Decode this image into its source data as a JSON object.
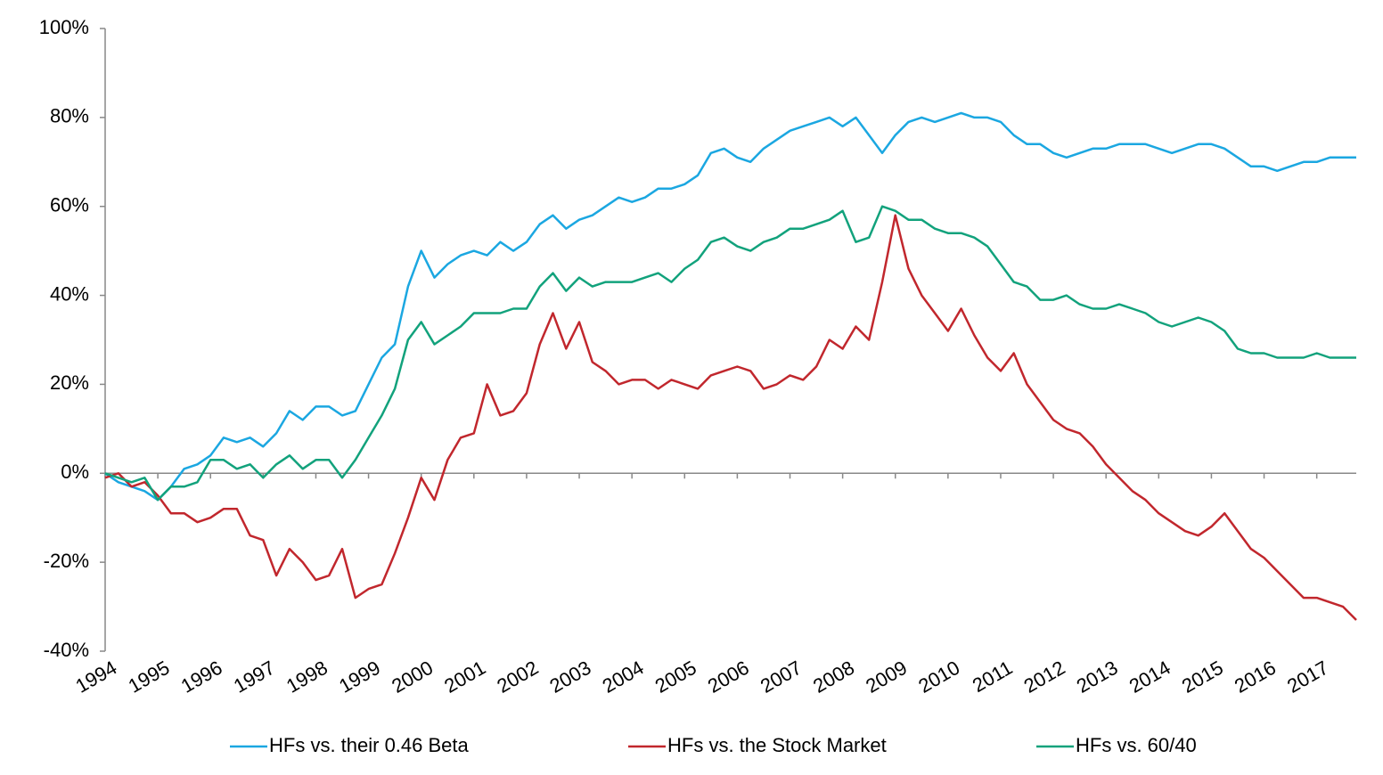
{
  "chart_data": {
    "type": "line",
    "x": [
      1994,
      1994.25,
      1994.5,
      1994.75,
      1995,
      1995.25,
      1995.5,
      1995.75,
      1996,
      1996.25,
      1996.5,
      1996.75,
      1997,
      1997.25,
      1997.5,
      1997.75,
      1998,
      1998.25,
      1998.5,
      1998.75,
      1999,
      1999.25,
      1999.5,
      1999.75,
      2000,
      2000.25,
      2000.5,
      2000.75,
      2001,
      2001.25,
      2001.5,
      2001.75,
      2002,
      2002.25,
      2002.5,
      2002.75,
      2003,
      2003.25,
      2003.5,
      2003.75,
      2004,
      2004.25,
      2004.5,
      2004.75,
      2005,
      2005.25,
      2005.5,
      2005.75,
      2006,
      2006.25,
      2006.5,
      2006.75,
      2007,
      2007.25,
      2007.5,
      2007.75,
      2008,
      2008.25,
      2008.5,
      2008.75,
      2009,
      2009.25,
      2009.5,
      2009.75,
      2010,
      2010.25,
      2010.5,
      2010.75,
      2011,
      2011.25,
      2011.5,
      2011.75,
      2012,
      2012.25,
      2012.5,
      2012.75,
      2013,
      2013.25,
      2013.5,
      2013.75,
      2014,
      2014.25,
      2014.5,
      2014.75,
      2015,
      2015.25,
      2015.5,
      2015.75,
      2016,
      2016.25,
      2016.5,
      2016.75,
      2017,
      2017.25,
      2017.5,
      2017.75
    ],
    "series": [
      {
        "name": "HFs vs. their 0.46 Beta",
        "color": "#1ba7e1",
        "values": [
          0,
          -2,
          -3,
          -4,
          -6,
          -3,
          1,
          2,
          4,
          8,
          7,
          8,
          6,
          9,
          14,
          12,
          15,
          15,
          13,
          14,
          20,
          26,
          29,
          42,
          50,
          44,
          47,
          49,
          50,
          49,
          52,
          50,
          52,
          56,
          58,
          55,
          57,
          58,
          60,
          62,
          61,
          62,
          64,
          64,
          65,
          67,
          72,
          73,
          71,
          70,
          73,
          75,
          77,
          78,
          79,
          80,
          78,
          80,
          76,
          72,
          76,
          79,
          80,
          79,
          80,
          81,
          80,
          80,
          79,
          76,
          74,
          74,
          72,
          71,
          72,
          73,
          73,
          74,
          74,
          74,
          73,
          72,
          73,
          74,
          74,
          73,
          71,
          69,
          69,
          68,
          69,
          70,
          70,
          71,
          71,
          71
        ]
      },
      {
        "name": "HFs vs. the Stock Market",
        "color": "#c1272d",
        "values": [
          -1,
          0,
          -3,
          -2,
          -5,
          -9,
          -9,
          -11,
          -10,
          -8,
          -8,
          -14,
          -15,
          -23,
          -17,
          -20,
          -24,
          -23,
          -17,
          -28,
          -26,
          -25,
          -18,
          -10,
          -1,
          -6,
          3,
          8,
          9,
          20,
          13,
          14,
          18,
          29,
          36,
          28,
          34,
          25,
          23,
          20,
          21,
          21,
          19,
          21,
          20,
          19,
          22,
          23,
          24,
          23,
          19,
          20,
          22,
          21,
          24,
          30,
          28,
          33,
          30,
          43,
          58,
          46,
          40,
          36,
          32,
          37,
          31,
          26,
          23,
          27,
          20,
          16,
          12,
          10,
          9,
          6,
          2,
          -1,
          -4,
          -6,
          -9,
          -11,
          -13,
          -14,
          -12,
          -9,
          -13,
          -17,
          -19,
          -22,
          -25,
          -28,
          -28,
          -29,
          -30,
          -33
        ]
      },
      {
        "name": "HFs vs. 60/40",
        "color": "#12a27c",
        "values": [
          0,
          -1,
          -2,
          -1,
          -6,
          -3,
          -3,
          -2,
          3,
          3,
          1,
          2,
          -1,
          2,
          4,
          1,
          3,
          3,
          -1,
          3,
          8,
          13,
          19,
          30,
          34,
          29,
          31,
          33,
          36,
          36,
          36,
          37,
          37,
          42,
          45,
          41,
          44,
          42,
          43,
          43,
          43,
          44,
          45,
          43,
          46,
          48,
          52,
          53,
          51,
          50,
          52,
          53,
          55,
          55,
          56,
          57,
          59,
          52,
          53,
          60,
          59,
          57,
          57,
          55,
          54,
          54,
          53,
          51,
          47,
          43,
          42,
          39,
          39,
          40,
          38,
          37,
          37,
          38,
          37,
          36,
          34,
          33,
          34,
          35,
          34,
          32,
          28,
          27,
          27,
          26,
          26,
          26,
          27,
          26,
          26,
          26
        ]
      }
    ],
    "xlim": [
      1994,
      2017.75
    ],
    "xticks": [
      1994,
      1995,
      1996,
      1997,
      1998,
      1999,
      2000,
      2001,
      2002,
      2003,
      2004,
      2005,
      2006,
      2007,
      2008,
      2009,
      2010,
      2011,
      2012,
      2013,
      2014,
      2015,
      2016,
      2017
    ],
    "ylim": [
      -40,
      100
    ],
    "yticks": [
      {
        "value": -40,
        "label": "-40%"
      },
      {
        "value": -20,
        "label": "-20%"
      },
      {
        "value": 0,
        "label": "0%"
      },
      {
        "value": 20,
        "label": "20%"
      },
      {
        "value": 40,
        "label": "40%"
      },
      {
        "value": 60,
        "label": "60%"
      },
      {
        "value": 80,
        "label": "80%"
      },
      {
        "value": 100,
        "label": "100%"
      }
    ],
    "legend": "bottom"
  }
}
